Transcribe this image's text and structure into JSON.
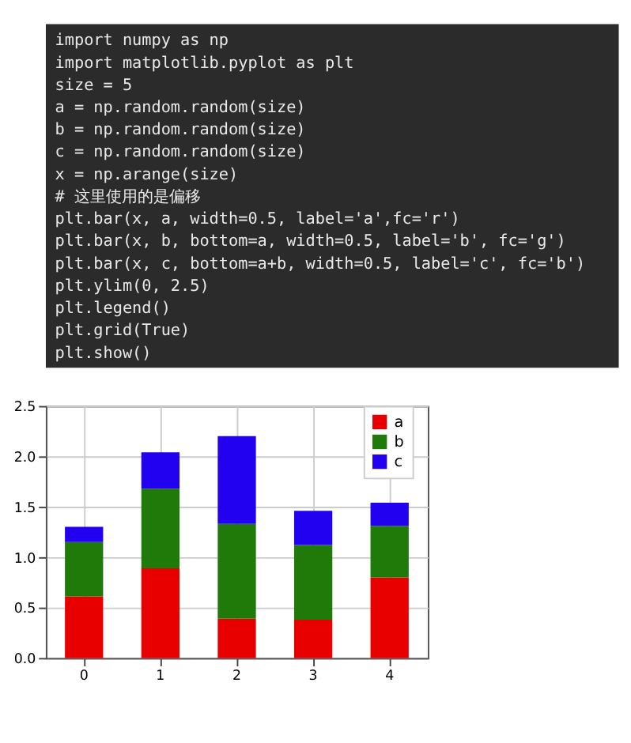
{
  "chart_data": {
    "type": "bar",
    "stacked": true,
    "categories": [
      "0",
      "1",
      "2",
      "3",
      "4"
    ],
    "series": [
      {
        "name": "a",
        "color": "#e80000",
        "values": [
          0.61,
          0.89,
          0.39,
          0.38,
          0.8
        ]
      },
      {
        "name": "b",
        "color": "#1f7a0a",
        "values": [
          0.54,
          0.79,
          0.94,
          0.74,
          0.51
        ]
      },
      {
        "name": "c",
        "color": "#2200f0",
        "values": [
          0.15,
          0.36,
          0.87,
          0.34,
          0.23
        ]
      }
    ],
    "ylim": [
      0,
      2.5
    ],
    "yticks": [
      {
        "value": 0,
        "label": "0.0"
      },
      {
        "value": 0.5,
        "label": "0.5"
      },
      {
        "value": 1,
        "label": "1.0"
      },
      {
        "value": 1.5,
        "label": "1.5"
      },
      {
        "value": 2,
        "label": "2.0"
      },
      {
        "value": 2.5,
        "label": "2.5"
      }
    ],
    "grid": true,
    "legend": "top right",
    "annotations": [
      "import numpy as np",
      "import matplotlib.pyplot as plt",
      "size = 5",
      "a = np.random.random(size)",
      "b = np.random.random(size)",
      "c = np.random.random(size)",
      "x = np.arange(size)",
      "# 这里使用的是偏移",
      "plt.bar(x, a, width=0.5, label='a',fc='r')",
      "plt.bar(x, b, bottom=a, width=0.5, label='b', fc='g')",
      "plt.bar(x, c, bottom=a+b, width=0.5, label='c', fc='b')",
      "plt.ylim(0, 2.5)",
      "plt.legend()",
      "plt.grid(True)",
      "plt.show()"
    ]
  }
}
